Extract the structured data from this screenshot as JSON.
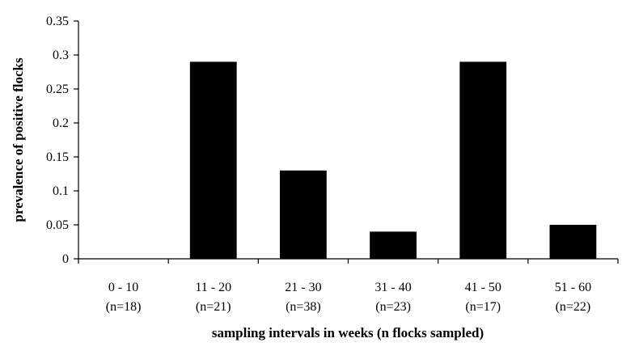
{
  "chart_data": {
    "type": "bar",
    "categories": [
      "0 - 10",
      "11 - 20",
      "21 - 30",
      "31 - 40",
      "41 - 50",
      "51 - 60"
    ],
    "category_counts": [
      "(n=18)",
      "(n=21)",
      "(n=38)",
      "(n=23)",
      "(n=17)",
      "(n=22)"
    ],
    "values": [
      0,
      0.29,
      0.13,
      0.04,
      0.29,
      0.05
    ],
    "ylim": [
      0,
      0.35
    ],
    "yticks": [
      "0",
      "0.05",
      "0.1",
      "0.15",
      "0.2",
      "0.25",
      "0.3",
      "0.35"
    ],
    "ytick_values": [
      0,
      0.05,
      0.1,
      0.15,
      0.2,
      0.25,
      0.3,
      0.35
    ],
    "xlabel": "sampling intervals in weeks (n flocks sampled)",
    "ylabel": "prevalence of positive flocks",
    "grid": false,
    "bar_color": "#000000"
  }
}
